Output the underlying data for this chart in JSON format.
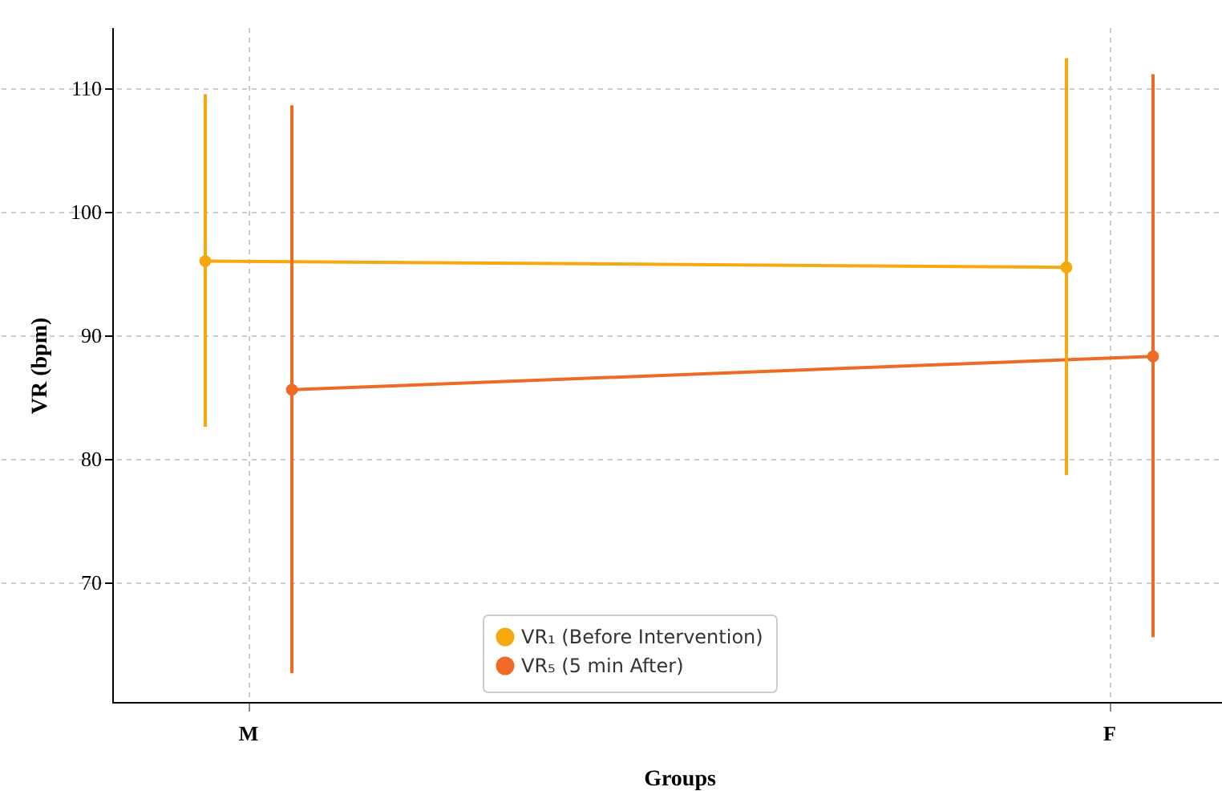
{
  "chart_data": {
    "type": "line",
    "xlabel": "Groups",
    "ylabel": "VR (bpm)",
    "categories": [
      "M",
      "F"
    ],
    "series": [
      {
        "name": "VR₁ (Before Intervention)",
        "color": "#f5a90f",
        "values": [
          96.0,
          95.5
        ],
        "errors": [
          [
            82.6,
            109.5
          ],
          [
            78.7,
            112.4
          ]
        ]
      },
      {
        "name": "VR₅ (5 min After)",
        "color": "#ee6a25",
        "values": [
          85.6,
          88.3
        ],
        "errors": [
          [
            62.7,
            108.6
          ],
          [
            65.6,
            111.1
          ]
        ]
      }
    ],
    "ylim": [
      60.3,
      114.9
    ],
    "yticks": [
      70,
      80,
      90,
      100,
      110
    ],
    "grid": true,
    "legend": "bottom",
    "marker": "circle",
    "line_style": "solid"
  }
}
